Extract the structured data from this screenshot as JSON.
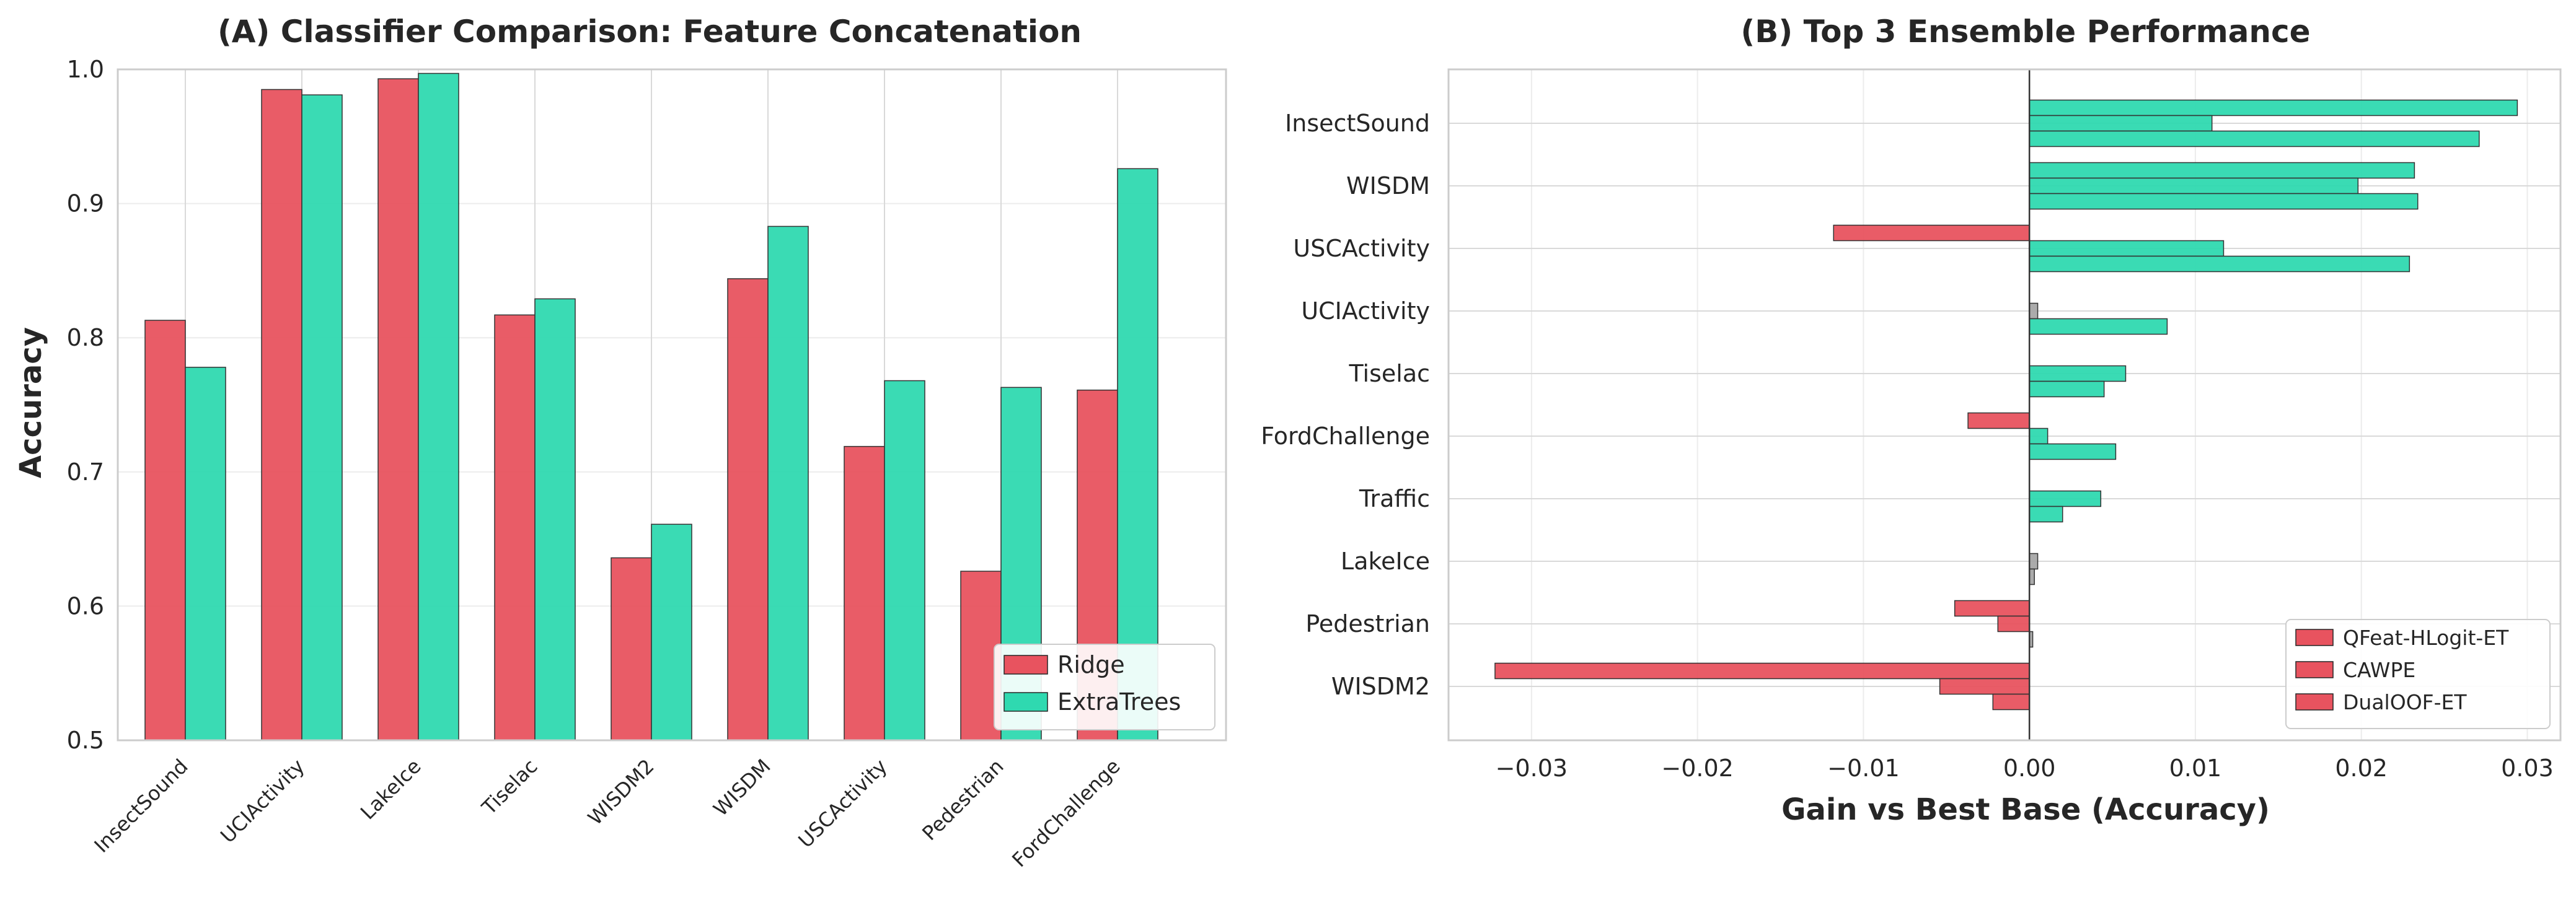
{
  "chart_data": [
    {
      "type": "bar",
      "title": "(A) Classifier Comparison: Feature Concatenation",
      "xlabel": "",
      "ylabel": "Accuracy",
      "ylim": [
        0.5,
        1.0
      ],
      "yticks": [
        "0.5",
        "0.6",
        "0.7",
        "0.8",
        "0.9",
        "1.0"
      ],
      "categories": [
        "InsectSound",
        "UCIActivity",
        "LakeIce",
        "Tiselac",
        "WISDM2",
        "WISDM",
        "USCActivity",
        "Pedestrian",
        "FordChallenge"
      ],
      "series": [
        {
          "name": "Ridge",
          "color": "#e8535f",
          "values": [
            0.813,
            0.985,
            0.993,
            0.817,
            0.636,
            0.844,
            0.719,
            0.626,
            0.761
          ]
        },
        {
          "name": "ExtraTrees",
          "color": "#2fd9b0",
          "values": [
            0.778,
            0.981,
            0.997,
            0.829,
            0.661,
            0.883,
            0.768,
            0.763,
            0.926
          ]
        }
      ],
      "grid": true,
      "legend": "lower-right"
    },
    {
      "type": "bar",
      "orientation": "horizontal",
      "title": "(B) Top 3 Ensemble Performance",
      "xlabel": "Gain vs Best Base (Accuracy)",
      "ylabel": "",
      "xlim": [
        -0.035,
        0.032
      ],
      "xticks": [
        "−0.03",
        "−0.02",
        "−0.01",
        "0.00",
        "0.01",
        "0.02",
        "0.03"
      ],
      "categories": [
        "InsectSound",
        "WISDM",
        "USCActivity",
        "UCIActivity",
        "Tiselac",
        "FordChallenge",
        "Traffic",
        "LakeIce",
        "Pedestrian",
        "WISDM2"
      ],
      "series": [
        {
          "name": "QFeat-HLogit-ET",
          "values": [
            0.0294,
            0.0232,
            -0.0118,
            0.0,
            0.0,
            -0.0037,
            0.0,
            0.0,
            -0.0045,
            -0.0322
          ]
        },
        {
          "name": "CAWPE",
          "values": [
            0.011,
            0.0198,
            0.0117,
            0.0005,
            0.0058,
            0.0011,
            0.0043,
            0.0005,
            -0.0019,
            -0.0054
          ]
        },
        {
          "name": "DualOOF-ET",
          "values": [
            0.0271,
            0.0234,
            0.0229,
            0.0083,
            0.0045,
            0.0052,
            0.002,
            0.0003,
            0.0002,
            -0.0022
          ]
        }
      ],
      "colors": {
        "positive": "#2fd9b0",
        "negative": "#e8535f",
        "near_zero": "#a6a6a6",
        "legend": "#e8535f"
      },
      "grid": true,
      "legend": "lower-right"
    }
  ]
}
